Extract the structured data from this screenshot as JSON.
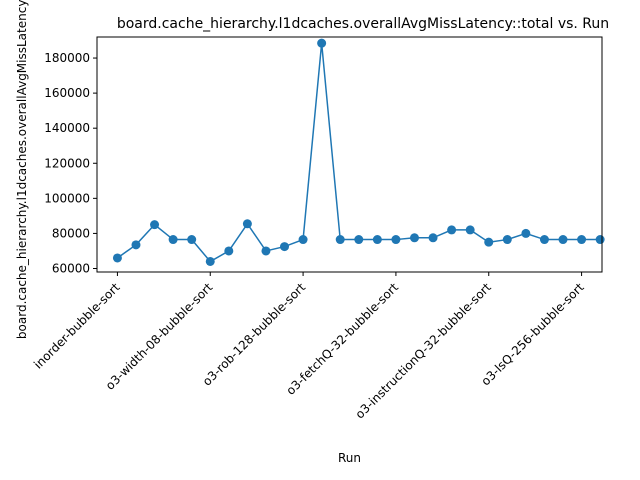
{
  "chart_data": {
    "type": "line",
    "title": "board.cache_hierarchy.l1dcaches.overallAvgMissLatency::total vs. Run",
    "xlabel": "Run",
    "ylabel": "board.cache_hierarchy.l1dcaches.overallAvgMissLatency::total",
    "ylim": [
      58000,
      192000
    ],
    "yticks": [
      60000,
      80000,
      100000,
      120000,
      140000,
      160000,
      180000
    ],
    "xlim": [
      -1.1,
      26.1
    ],
    "xticks": [
      0,
      5,
      10,
      15,
      20,
      25
    ],
    "xtick_labels": [
      "inorder-bubble-sort",
      "o3-width-08-bubble-sort",
      "o3-rob-128-bubble-sort",
      "o3-fetchQ-32-bubble-sort",
      "o3-instructionQ-32-bubble-sort",
      "o3-lsQ-256-bubble-sort"
    ],
    "grid": false,
    "series": [
      {
        "color": "#1f77b4",
        "marker": "circle",
        "x": [
          0,
          1,
          2,
          3,
          4,
          5,
          6,
          7,
          8,
          9,
          10,
          11,
          12,
          13,
          14,
          15,
          16,
          17,
          18,
          19,
          20,
          21,
          22,
          23,
          24,
          25,
          26
        ],
        "values": [
          66000,
          73500,
          85000,
          76500,
          76500,
          64000,
          70000,
          85500,
          70000,
          72500,
          76500,
          188500,
          76500,
          76500,
          76500,
          76500,
          77500,
          77500,
          82000,
          82000,
          75000,
          76500,
          80000,
          76500,
          76500,
          76500,
          76500
        ]
      }
    ]
  }
}
